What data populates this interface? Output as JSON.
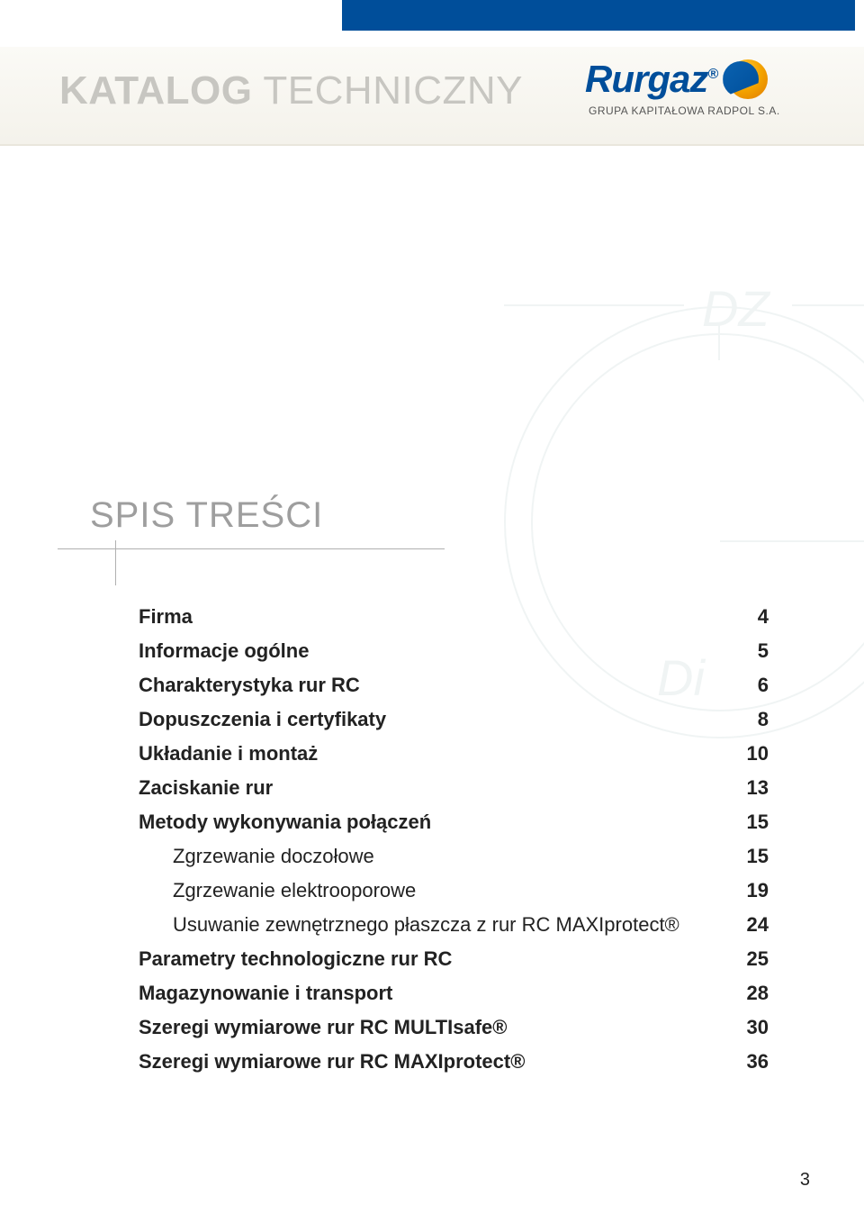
{
  "header": {
    "title_bold": "KATALOG",
    "title_light": " TECHNICZNY",
    "accent_color": "#004e9a",
    "strip_bg_top": "#fbfaf6",
    "strip_bg_bottom": "#f4f2eb"
  },
  "logo": {
    "word": "Rurgaz",
    "registered": "®",
    "subline": "GRUPA KAPITAŁOWA RADPOL S.A.",
    "word_color": "#004e9a",
    "sub_color": "#555555",
    "swirl_orange": "#f4a400",
    "swirl_blue": "#004e9a"
  },
  "watermark": {
    "label_top": "DZ",
    "label_mid": "Di",
    "stroke_color": "#8aa",
    "opacity": 0.12
  },
  "toc": {
    "title": "SPIS TREŚCI",
    "title_color": "#9e9e9e",
    "title_fontsize": 40,
    "row_fontsize": 22,
    "text_color": "#222222",
    "rule_color": "#b0b0b0",
    "items": [
      {
        "label": "Firma",
        "page": "4",
        "bold": true,
        "indent": false
      },
      {
        "label": "Informacje ogólne",
        "page": "5",
        "bold": true,
        "indent": false
      },
      {
        "label": "Charakterystyka rur RC",
        "page": "6",
        "bold": true,
        "indent": false
      },
      {
        "label": "Dopuszczenia i certyfikaty",
        "page": "8",
        "bold": true,
        "indent": false
      },
      {
        "label": "Układanie i montaż",
        "page": "10",
        "bold": true,
        "indent": false
      },
      {
        "label": "Zaciskanie rur",
        "page": "13",
        "bold": true,
        "indent": false
      },
      {
        "label": "Metody wykonywania połączeń",
        "page": "15",
        "bold": true,
        "indent": false
      },
      {
        "label": "Zgrzewanie doczołowe",
        "page": "15",
        "bold": false,
        "indent": true
      },
      {
        "label": "Zgrzewanie elektrooporowe",
        "page": "19",
        "bold": false,
        "indent": true
      },
      {
        "label": "Usuwanie zewnętrznego płaszcza z rur RC MAXIprotect®",
        "page": "24",
        "bold": false,
        "indent": true
      },
      {
        "label": "Parametry technologiczne rur RC",
        "page": "25",
        "bold": true,
        "indent": false
      },
      {
        "label": "Magazynowanie i transport",
        "page": "28",
        "bold": true,
        "indent": false
      },
      {
        "label": "Szeregi wymiarowe rur RC MULTIsafe®",
        "page": "30",
        "bold": true,
        "indent": false
      },
      {
        "label": "Szeregi wymiarowe rur RC MAXIprotect®",
        "page": "36",
        "bold": true,
        "indent": false
      }
    ]
  },
  "page_number": "3"
}
